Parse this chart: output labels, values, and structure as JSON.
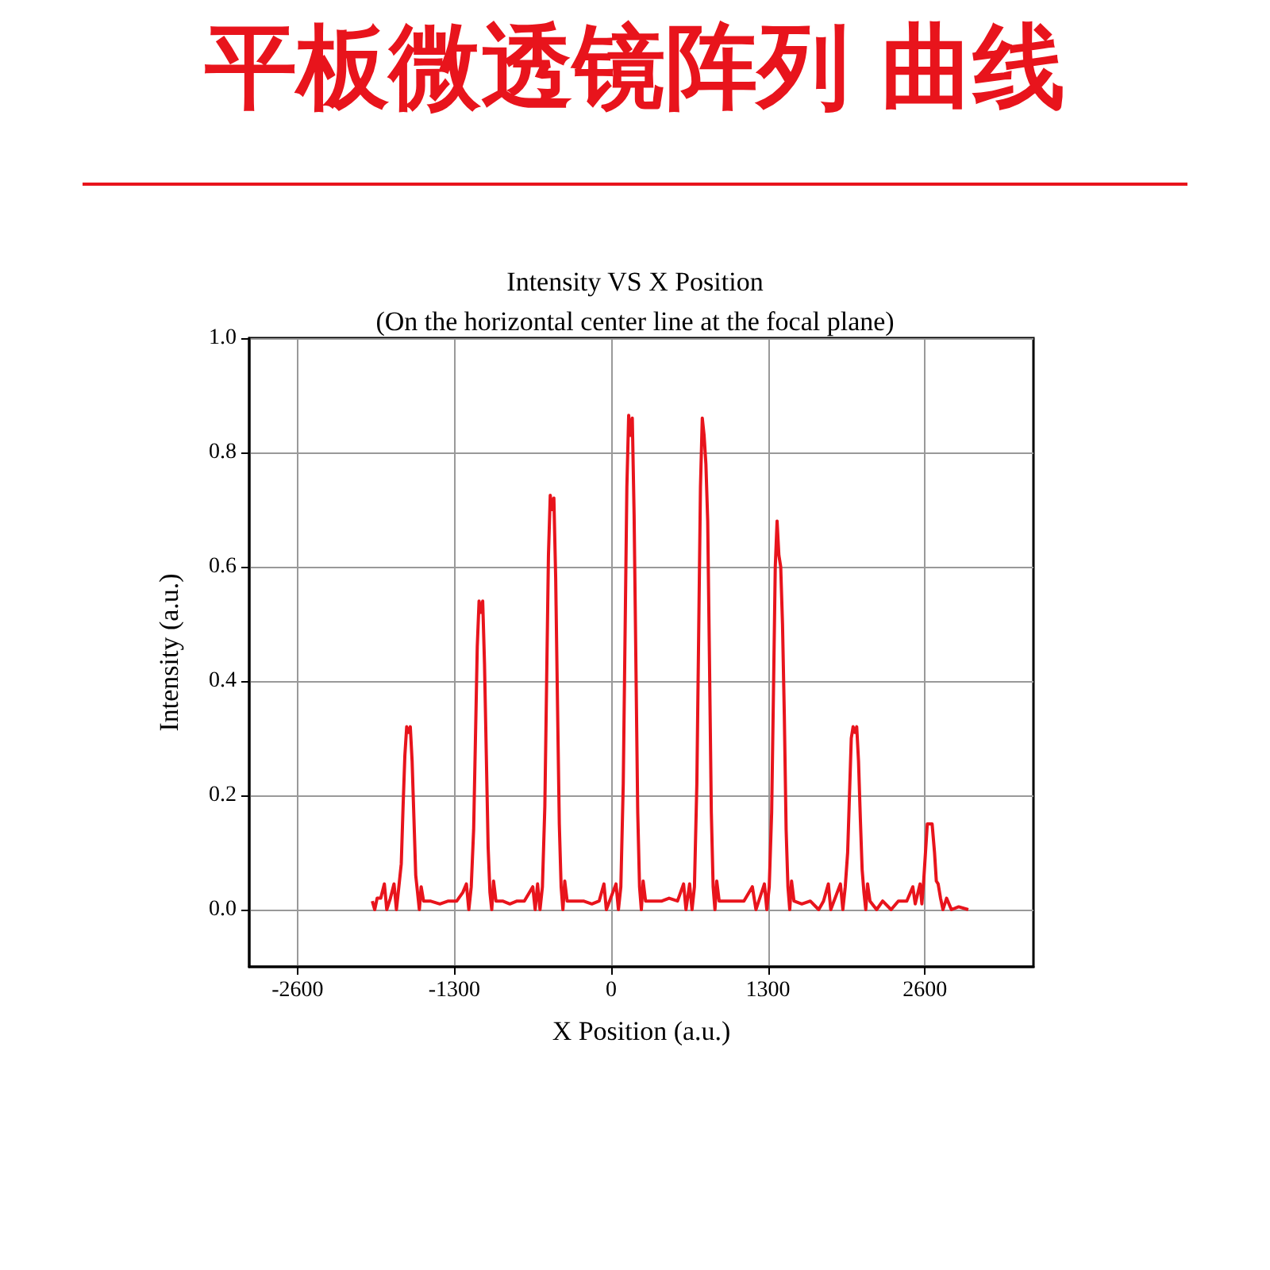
{
  "chart_data": {
    "type": "line",
    "title": "平板微透镜阵列 曲线",
    "subtitle": "Intensity VS X Position\n(On the horizontal center line at the focal plane)",
    "xlabel": "X Position (a.u.)",
    "ylabel": "Intensity (a.u.)",
    "xlim": [
      -3000,
      3500
    ],
    "xticks": [
      -2600,
      -1300,
      0,
      1300,
      2600
    ],
    "ylim": [
      -0.1,
      1.0
    ],
    "yticks": [
      {
        "value": 0,
        "label": "0.0"
      },
      {
        "value": 0.2,
        "label": "0.2"
      },
      {
        "value": 0.4,
        "label": "0.4"
      },
      {
        "value": 0.6,
        "label": "0.6"
      },
      {
        "value": 0.8,
        "label": "0.8"
      },
      {
        "value": 1,
        "label": "1.0"
      }
    ],
    "grid": true,
    "marker": "none",
    "line_style": "solid",
    "series": [
      {
        "color": "#e8141c",
        "x": [
          -1980,
          -1960,
          -1940,
          -1910,
          -1880,
          -1860,
          -1830,
          -1800,
          -1780,
          -1760,
          -1740,
          -1725,
          -1710,
          -1695,
          -1680,
          -1665,
          -1650,
          -1635,
          -1620,
          -1605,
          -1590,
          -1575,
          -1555,
          -1500,
          -1420,
          -1350,
          -1280,
          -1230,
          -1200,
          -1180,
          -1160,
          -1140,
          -1125,
          -1110,
          -1095,
          -1080,
          -1065,
          -1050,
          -1035,
          -1020,
          -1005,
          -990,
          -975,
          -955,
          -900,
          -840,
          -780,
          -720,
          -650,
          -630,
          -610,
          -590,
          -570,
          -550,
          -535,
          -520,
          -505,
          -490,
          -475,
          -460,
          -445,
          -430,
          -415,
          -400,
          -385,
          -365,
          -300,
          -230,
          -160,
          -100,
          -60,
          -40,
          40,
          60,
          80,
          100,
          115,
          130,
          145,
          160,
          175,
          190,
          205,
          220,
          235,
          250,
          265,
          285,
          350,
          420,
          480,
          550,
          600,
          620,
          650,
          670,
          690,
          710,
          725,
          740,
          755,
          770,
          785,
          800,
          815,
          830,
          845,
          860,
          875,
          895,
          960,
          1030,
          1100,
          1170,
          1200,
          1270,
          1290,
          1310,
          1330,
          1345,
          1360,
          1375,
          1390,
          1405,
          1420,
          1435,
          1450,
          1465,
          1480,
          1495,
          1515,
          1580,
          1650,
          1720,
          1760,
          1800,
          1820,
          1900,
          1920,
          1940,
          1960,
          1975,
          1990,
          2005,
          2020,
          2035,
          2050,
          2065,
          2080,
          2095,
          2110,
          2125,
          2145,
          2200,
          2250,
          2320,
          2380,
          2450,
          2500,
          2520,
          2560,
          2575,
          2590,
          2605,
          2620,
          2640,
          2660,
          2680,
          2695,
          2710,
          2730,
          2750,
          2780,
          2820,
          2880,
          2960
        ],
        "values": [
          0.015,
          0.0,
          0.02,
          0.02,
          0.045,
          0.0,
          0.02,
          0.045,
          0.0,
          0.04,
          0.08,
          0.18,
          0.27,
          0.32,
          0.31,
          0.32,
          0.26,
          0.16,
          0.06,
          0.03,
          0.0,
          0.04,
          0.015,
          0.015,
          0.01,
          0.015,
          0.015,
          0.03,
          0.045,
          0.0,
          0.04,
          0.14,
          0.3,
          0.46,
          0.54,
          0.52,
          0.54,
          0.43,
          0.27,
          0.11,
          0.03,
          0.0,
          0.05,
          0.015,
          0.015,
          0.01,
          0.015,
          0.015,
          0.04,
          0.0,
          0.045,
          0.0,
          0.04,
          0.18,
          0.4,
          0.62,
          0.725,
          0.7,
          0.72,
          0.58,
          0.36,
          0.15,
          0.04,
          0.0,
          0.05,
          0.015,
          0.015,
          0.015,
          0.01,
          0.015,
          0.045,
          0.0,
          0.045,
          0.0,
          0.04,
          0.22,
          0.48,
          0.74,
          0.865,
          0.83,
          0.86,
          0.69,
          0.43,
          0.17,
          0.04,
          0.0,
          0.05,
          0.015,
          0.015,
          0.015,
          0.02,
          0.015,
          0.045,
          0.0,
          0.045,
          0.0,
          0.04,
          0.22,
          0.48,
          0.74,
          0.86,
          0.83,
          0.78,
          0.68,
          0.43,
          0.17,
          0.04,
          0.0,
          0.05,
          0.015,
          0.015,
          0.015,
          0.015,
          0.04,
          0.0,
          0.045,
          0.0,
          0.04,
          0.17,
          0.38,
          0.6,
          0.68,
          0.62,
          0.6,
          0.5,
          0.34,
          0.14,
          0.04,
          0.0,
          0.05,
          0.015,
          0.01,
          0.015,
          0.0,
          0.015,
          0.045,
          0.0,
          0.045,
          0.0,
          0.04,
          0.1,
          0.2,
          0.3,
          0.32,
          0.31,
          0.32,
          0.26,
          0.16,
          0.07,
          0.03,
          0.0,
          0.045,
          0.015,
          0.0,
          0.015,
          0.0,
          0.015,
          0.015,
          0.04,
          0.01,
          0.045,
          0.01,
          0.05,
          0.1,
          0.15,
          0.15,
          0.15,
          0.1,
          0.05,
          0.045,
          0.02,
          0.0,
          0.02,
          0.0,
          0.005,
          0.0
        ]
      }
    ]
  }
}
